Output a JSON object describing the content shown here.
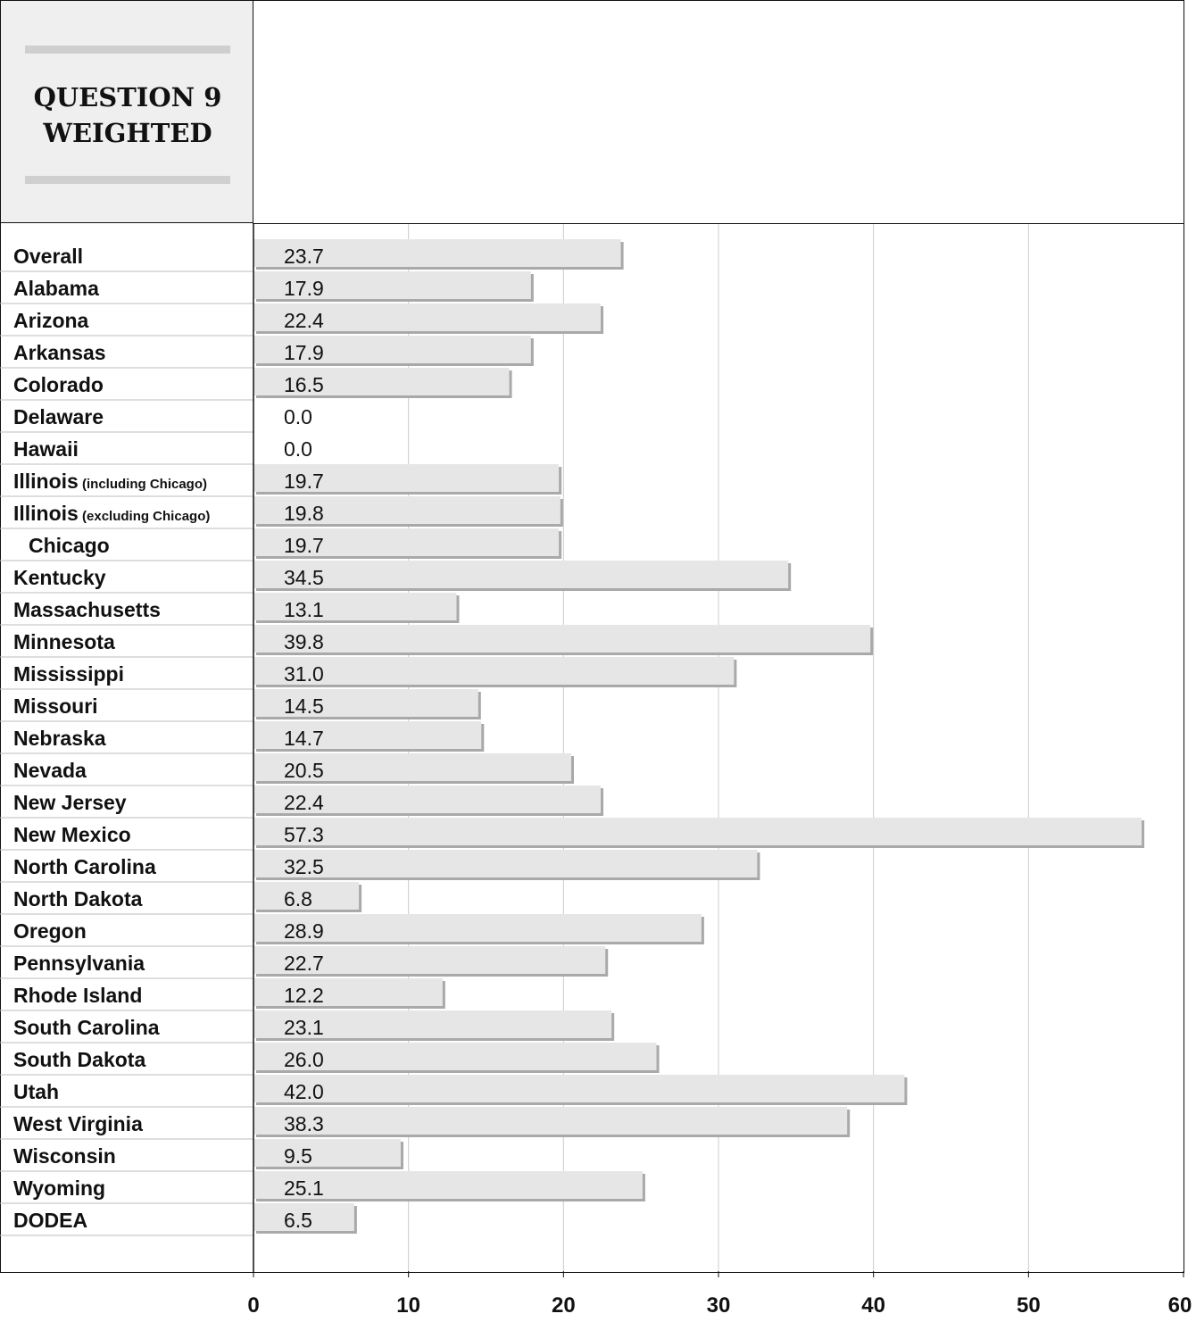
{
  "header": {
    "title_line1": "QUESTION 9",
    "title_line2": "WEIGHTED"
  },
  "chart_data": {
    "type": "bar",
    "orientation": "horizontal",
    "title": "QUESTION 9 WEIGHTED",
    "xlim": [
      0,
      60
    ],
    "x_ticks": [
      "0",
      "10",
      "20",
      "30",
      "40",
      "50",
      "60"
    ],
    "grid": true,
    "categories": [
      {
        "name": "Overall",
        "note": "",
        "indent": false
      },
      {
        "name": "Alabama",
        "note": "",
        "indent": false
      },
      {
        "name": "Arizona",
        "note": "",
        "indent": false
      },
      {
        "name": "Arkansas",
        "note": "",
        "indent": false
      },
      {
        "name": "Colorado",
        "note": "",
        "indent": false
      },
      {
        "name": "Delaware",
        "note": "",
        "indent": false
      },
      {
        "name": "Hawaii",
        "note": "",
        "indent": false
      },
      {
        "name": "Illinois",
        "note": "(including Chicago)",
        "indent": false
      },
      {
        "name": "Illinois",
        "note": "(excluding Chicago)",
        "indent": false
      },
      {
        "name": "Chicago",
        "note": "",
        "indent": true
      },
      {
        "name": "Kentucky",
        "note": "",
        "indent": false
      },
      {
        "name": "Massachusetts",
        "note": "",
        "indent": false
      },
      {
        "name": "Minnesota",
        "note": "",
        "indent": false
      },
      {
        "name": "Mississippi",
        "note": "",
        "indent": false
      },
      {
        "name": "Missouri",
        "note": "",
        "indent": false
      },
      {
        "name": "Nebraska",
        "note": "",
        "indent": false
      },
      {
        "name": "Nevada",
        "note": "",
        "indent": false
      },
      {
        "name": "New Jersey",
        "note": "",
        "indent": false
      },
      {
        "name": "New Mexico",
        "note": "",
        "indent": false
      },
      {
        "name": "North Carolina",
        "note": "",
        "indent": false
      },
      {
        "name": "North Dakota",
        "note": "",
        "indent": false
      },
      {
        "name": "Oregon",
        "note": "",
        "indent": false
      },
      {
        "name": "Pennsylvania",
        "note": "",
        "indent": false
      },
      {
        "name": "Rhode Island",
        "note": "",
        "indent": false
      },
      {
        "name": "South Carolina",
        "note": "",
        "indent": false
      },
      {
        "name": "South Dakota",
        "note": "",
        "indent": false
      },
      {
        "name": "Utah",
        "note": "",
        "indent": false
      },
      {
        "name": "West Virginia",
        "note": "",
        "indent": false
      },
      {
        "name": "Wisconsin",
        "note": "",
        "indent": false
      },
      {
        "name": "Wyoming",
        "note": "",
        "indent": false
      },
      {
        "name": "DODEA",
        "note": "",
        "indent": false
      }
    ],
    "values": [
      23.7,
      17.9,
      22.4,
      17.9,
      16.5,
      0.0,
      0.0,
      19.7,
      19.8,
      19.7,
      34.5,
      13.1,
      39.8,
      31.0,
      14.5,
      14.7,
      20.5,
      22.4,
      57.3,
      32.5,
      6.8,
      28.9,
      22.7,
      12.2,
      23.1,
      26.0,
      42.0,
      38.3,
      9.5,
      25.1,
      6.5
    ],
    "value_labels": [
      "23.7",
      "17.9",
      "22.4",
      "17.9",
      "16.5",
      "0.0",
      "0.0",
      "19.7",
      "19.8",
      "19.7",
      "34.5",
      "13.1",
      "39.8",
      "31.0",
      "14.5",
      "14.7",
      "20.5",
      "22.4",
      "57.3",
      "32.5",
      "6.8",
      "28.9",
      "22.7",
      "12.2",
      "23.1",
      "26.0",
      "42.0",
      "38.3",
      "9.5",
      "25.1",
      "6.5"
    ],
    "colors": {
      "bar_fill": "#e6e6e6",
      "bar_shadow": "#a9a9a9",
      "gridline": "#cccccc",
      "row_rule": "#bdbdbd",
      "title_panel": "#efefef"
    }
  }
}
